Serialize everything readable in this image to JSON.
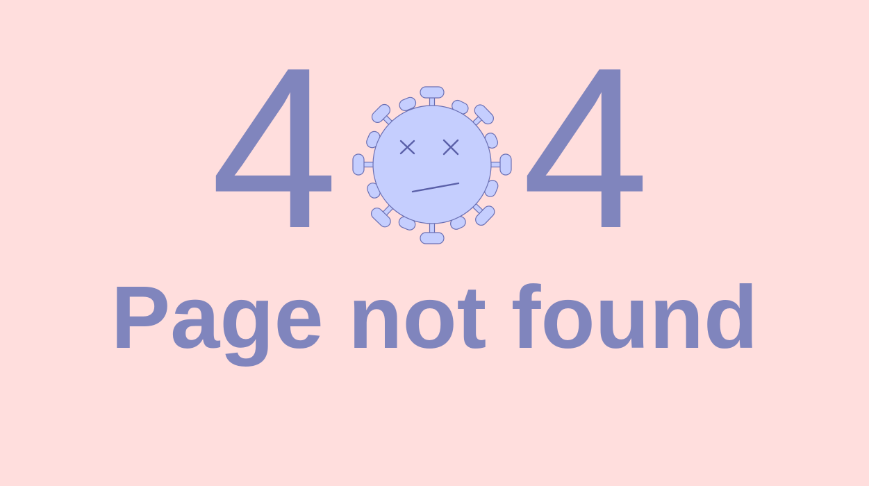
{
  "error_code": {
    "first_digit": "4",
    "last_digit": "4"
  },
  "illustration": {
    "icon": "dead-virus-icon",
    "body_color": "#c5cefe",
    "outline_color": "#6a6fb3"
  },
  "message": "Page not found",
  "colors": {
    "background": "#ffdedd",
    "text": "#8085bd"
  }
}
